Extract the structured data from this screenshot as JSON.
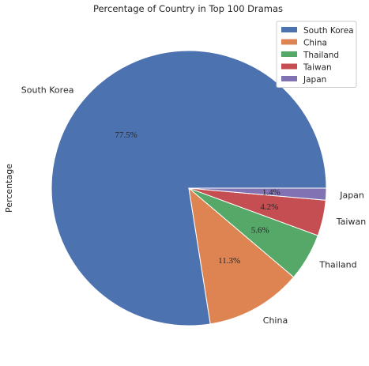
{
  "chart_data": {
    "type": "pie",
    "title": "Percentage of Country in Top 100 Dramas",
    "ylabel": "Percentage",
    "categories": [
      "South Korea",
      "China",
      "Thailand",
      "Taiwan",
      "Japan"
    ],
    "values": [
      77.5,
      11.3,
      5.6,
      4.2,
      1.4
    ],
    "value_labels": [
      "77.5%",
      "11.3%",
      "5.6%",
      "4.2%",
      "1.4%"
    ],
    "colors": [
      "#4c72b0",
      "#dd8452",
      "#55a868",
      "#c44e52",
      "#8172b3"
    ],
    "legend": "top-right"
  }
}
